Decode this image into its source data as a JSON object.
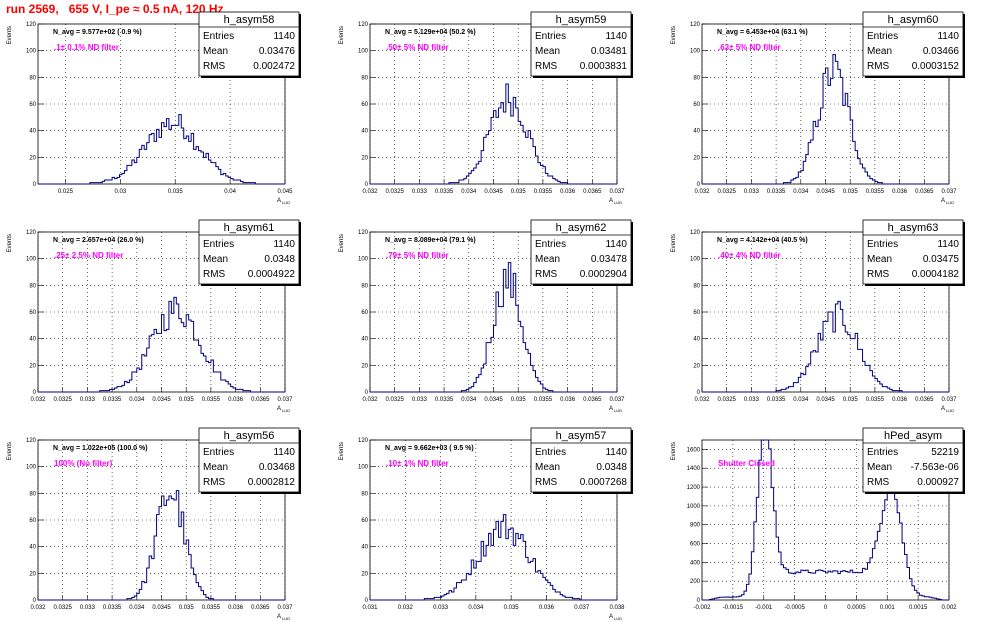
{
  "header": {
    "title": "run 2569,   655 V, I_pe ≈ 0.5 nA, 120 Hz"
  },
  "colors": {
    "hist": "#000080",
    "grid": "#000000",
    "note": "#ff00ff",
    "title": "#ff0000"
  },
  "chart_data": [
    {
      "type": "histogram",
      "name": "h_asym58",
      "entries": "1140",
      "mean": "0.03476",
      "rms": "0.002472",
      "navg": "N_avg = 9.577e+02 ( 0.9 %)",
      "note": ".1± 0.1% ND filter",
      "ylabel": "Events",
      "xlabel": "A",
      "xlabel_sub": "LUD",
      "xlim": [
        0.0225,
        0.045
      ],
      "ylim": [
        0,
        120
      ],
      "xticks": [
        0.025,
        0.03,
        0.035,
        0.04,
        0.045
      ],
      "xtick_labels": [
        "0.025",
        "0.03",
        "0.035",
        "0.04",
        "0.045"
      ],
      "yticks": [
        0,
        20,
        40,
        60,
        80,
        100,
        120
      ],
      "ytick_labels": [
        "0",
        "20",
        "40",
        "60",
        "80",
        "100",
        "120"
      ],
      "mu": 0.03476,
      "sigma": 0.002472,
      "peak": 46,
      "nbins": 100
    },
    {
      "type": "histogram",
      "name": "h_asym59",
      "entries": "1140",
      "mean": "0.03481",
      "rms": "0.0003831",
      "navg": "N_avg = 5.129e+04 (50.2 %)",
      "note": ".50± 5% ND filter",
      "ylabel": "Events",
      "xlabel": "A",
      "xlabel_sub": "LUD",
      "xlim": [
        0.032,
        0.037
      ],
      "ylim": [
        0,
        120
      ],
      "xticks": [
        0.032,
        0.0325,
        0.033,
        0.0335,
        0.034,
        0.0345,
        0.035,
        0.0355,
        0.036,
        0.0365,
        0.037
      ],
      "xtick_labels": [
        "0.032",
        "0.0325",
        "0.033",
        "0.0335",
        "0.034",
        "0.0345",
        "0.035",
        "0.0355",
        "0.036",
        "0.0365",
        "0.037"
      ],
      "yticks": [
        0,
        20,
        40,
        60,
        80,
        100,
        120
      ],
      "ytick_labels": [
        "0",
        "20",
        "40",
        "60",
        "80",
        "100",
        "120"
      ],
      "mu": 0.03481,
      "sigma": 0.0003831,
      "peak": 65,
      "nbins": 100
    },
    {
      "type": "histogram",
      "name": "h_asym60",
      "entries": "1140",
      "mean": "0.03466",
      "rms": "0.0003152",
      "navg": "N_avg = 6.453e+04 (63.1 %)",
      "note": ".63± 5% ND filter",
      "ylabel": "Events",
      "xlabel": "A",
      "xlabel_sub": "LUD",
      "xlim": [
        0.032,
        0.037
      ],
      "ylim": [
        0,
        120
      ],
      "xticks": [
        0.032,
        0.0325,
        0.033,
        0.0335,
        0.034,
        0.0345,
        0.035,
        0.0355,
        0.036,
        0.0365,
        0.037
      ],
      "xtick_labels": [
        "0.032",
        "0.0325",
        "0.033",
        "0.0335",
        "0.034",
        "0.0345",
        "0.035",
        "0.0355",
        "0.036",
        "0.0365",
        "0.037"
      ],
      "yticks": [
        0,
        20,
        40,
        60,
        80,
        100,
        120
      ],
      "ytick_labels": [
        "0",
        "20",
        "40",
        "60",
        "80",
        "100",
        "120"
      ],
      "mu": 0.03466,
      "sigma": 0.0003152,
      "peak": 85,
      "nbins": 100
    },
    {
      "type": "histogram",
      "name": "h_asym61",
      "entries": "1140",
      "mean": "0.0348",
      "rms": "0.0004922",
      "navg": "N_avg = 2.657e+04 (26.0 %)",
      "note": ".25± 2.5% ND filter",
      "ylabel": "Events",
      "xlabel": "A",
      "xlabel_sub": "LUD",
      "xlim": [
        0.032,
        0.037
      ],
      "ylim": [
        0,
        120
      ],
      "xticks": [
        0.032,
        0.0325,
        0.033,
        0.0335,
        0.034,
        0.0345,
        0.035,
        0.0355,
        0.036,
        0.0365,
        0.037
      ],
      "xtick_labels": [
        "0.032",
        "0.0325",
        "0.033",
        "0.0335",
        "0.034",
        "0.0345",
        "0.035",
        "0.0355",
        "0.036",
        "0.0365",
        "0.037"
      ],
      "yticks": [
        0,
        20,
        40,
        60,
        80,
        100,
        120
      ],
      "ytick_labels": [
        "0",
        "20",
        "40",
        "60",
        "80",
        "100",
        "120"
      ],
      "mu": 0.0348,
      "sigma": 0.0004922,
      "peak": 62,
      "nbins": 100
    },
    {
      "type": "histogram",
      "name": "h_asym62",
      "entries": "1140",
      "mean": "0.03478",
      "rms": "0.0002904",
      "navg": "N_avg = 8.089e+04 (79.1 %)",
      "note": ".79± 5% ND filter",
      "ylabel": "Events",
      "xlabel": "A",
      "xlabel_sub": "LUD",
      "xlim": [
        0.032,
        0.037
      ],
      "ylim": [
        0,
        120
      ],
      "xticks": [
        0.032,
        0.0325,
        0.033,
        0.0335,
        0.034,
        0.0345,
        0.035,
        0.0355,
        0.036,
        0.0365,
        0.037
      ],
      "xtick_labels": [
        "0.032",
        "0.0325",
        "0.033",
        "0.0335",
        "0.034",
        "0.0345",
        "0.035",
        "0.0355",
        "0.036",
        "0.0365",
        "0.037"
      ],
      "yticks": [
        0,
        20,
        40,
        60,
        80,
        100,
        120
      ],
      "ytick_labels": [
        "0",
        "20",
        "40",
        "60",
        "80",
        "100",
        "120"
      ],
      "mu": 0.03478,
      "sigma": 0.0002904,
      "peak": 85,
      "nbins": 100
    },
    {
      "type": "histogram",
      "name": "h_asym63",
      "entries": "1140",
      "mean": "0.03475",
      "rms": "0.0004182",
      "navg": "N_avg = 4.142e+04 (40.5 %)",
      "note": ".40± 4% ND filter",
      "ylabel": "Events",
      "xlabel": "A",
      "xlabel_sub": "LUD",
      "xlim": [
        0.032,
        0.037
      ],
      "ylim": [
        0,
        120
      ],
      "xticks": [
        0.032,
        0.0325,
        0.033,
        0.0335,
        0.034,
        0.0345,
        0.035,
        0.0355,
        0.036,
        0.0365,
        0.037
      ],
      "xtick_labels": [
        "0.032",
        "0.0325",
        "0.033",
        "0.0335",
        "0.034",
        "0.0345",
        "0.035",
        "0.0355",
        "0.036",
        "0.0365",
        "0.037"
      ],
      "yticks": [
        0,
        20,
        40,
        60,
        80,
        100,
        120
      ],
      "ytick_labels": [
        "0",
        "20",
        "40",
        "60",
        "80",
        "100",
        "120"
      ],
      "mu": 0.03475,
      "sigma": 0.0004182,
      "peak": 57,
      "nbins": 100
    },
    {
      "type": "histogram",
      "name": "h_asym56",
      "entries": "1140",
      "mean": "0.03468",
      "rms": "0.0002812",
      "navg": "N_avg = 1.022e+05 (100.0 %)",
      "note": "100% (No filter)",
      "ylabel": "Events",
      "xlabel": "A",
      "xlabel_sub": "LUD",
      "xlim": [
        0.032,
        0.037
      ],
      "ylim": [
        0,
        120
      ],
      "xticks": [
        0.032,
        0.0325,
        0.033,
        0.0335,
        0.034,
        0.0345,
        0.035,
        0.0355,
        0.036,
        0.0365,
        0.037
      ],
      "xtick_labels": [
        "0.032",
        "0.0325",
        "0.033",
        "0.0335",
        "0.034",
        "0.0345",
        "0.035",
        "0.0355",
        "0.036",
        "0.0365",
        "0.037"
      ],
      "yticks": [
        0,
        20,
        40,
        60,
        80,
        100,
        120
      ],
      "ytick_labels": [
        "0",
        "20",
        "40",
        "60",
        "80",
        "100",
        "120"
      ],
      "mu": 0.03468,
      "sigma": 0.0002812,
      "peak": 82,
      "nbins": 100
    },
    {
      "type": "histogram",
      "name": "h_asym57",
      "entries": "1140",
      "mean": "0.0348",
      "rms": "0.0007268",
      "navg": "N_avg = 9.662e+03 ( 9.5 %)",
      "note": ".10± 1% ND filter",
      "ylabel": "Events",
      "xlabel": "A",
      "xlabel_sub": "LUD",
      "xlim": [
        0.031,
        0.038
      ],
      "ylim": [
        0,
        120
      ],
      "xticks": [
        0.031,
        0.032,
        0.033,
        0.034,
        0.035,
        0.036,
        0.037,
        0.038
      ],
      "xtick_labels": [
        "0.031",
        "0.032",
        "0.033",
        "0.034",
        "0.035",
        "0.036",
        "0.037",
        "0.038"
      ],
      "yticks": [
        0,
        20,
        40,
        60,
        80,
        100,
        120
      ],
      "ytick_labels": [
        "0",
        "20",
        "40",
        "60",
        "80",
        "100",
        "120"
      ],
      "mu": 0.0348,
      "sigma": 0.0007268,
      "peak": 55,
      "nbins": 100
    },
    {
      "type": "histogram",
      "name": "hPed_asym",
      "entries": "52219",
      "mean": "-7.563e-06",
      "rms": "0.000927",
      "navg": "",
      "note": "Shutter Closed",
      "ylabel": "Events",
      "xlabel": "",
      "xlabel_sub": "",
      "xlim": [
        -0.002,
        0.002
      ],
      "ylim": [
        0,
        1700
      ],
      "xticks": [
        -0.002,
        -0.0015,
        -0.001,
        -0.0005,
        0,
        0.0005,
        0.001,
        0.0015,
        0.002
      ],
      "xtick_labels": [
        "-0.002",
        "-0.0015",
        "-0.001",
        "-0.0005",
        "0",
        "0.0005",
        "0.001",
        "0.0015",
        "0.002"
      ],
      "yticks": [
        0,
        200,
        400,
        600,
        800,
        1000,
        1200,
        1400,
        1600
      ],
      "ytick_labels": [
        "0",
        "200",
        "400",
        "600",
        "800",
        "1000",
        "1200",
        "1400",
        "1600"
      ],
      "bimodal": [
        {
          "mu": -0.00098,
          "sigma": 0.00012,
          "amp": 1650
        },
        {
          "mu": 0.00107,
          "sigma": 0.00017,
          "amp": 1060
        }
      ],
      "baseline": 300,
      "nbins": 100
    }
  ],
  "stats_labels": {
    "entries": "Entries",
    "mean": "Mean",
    "rms": "RMS"
  }
}
